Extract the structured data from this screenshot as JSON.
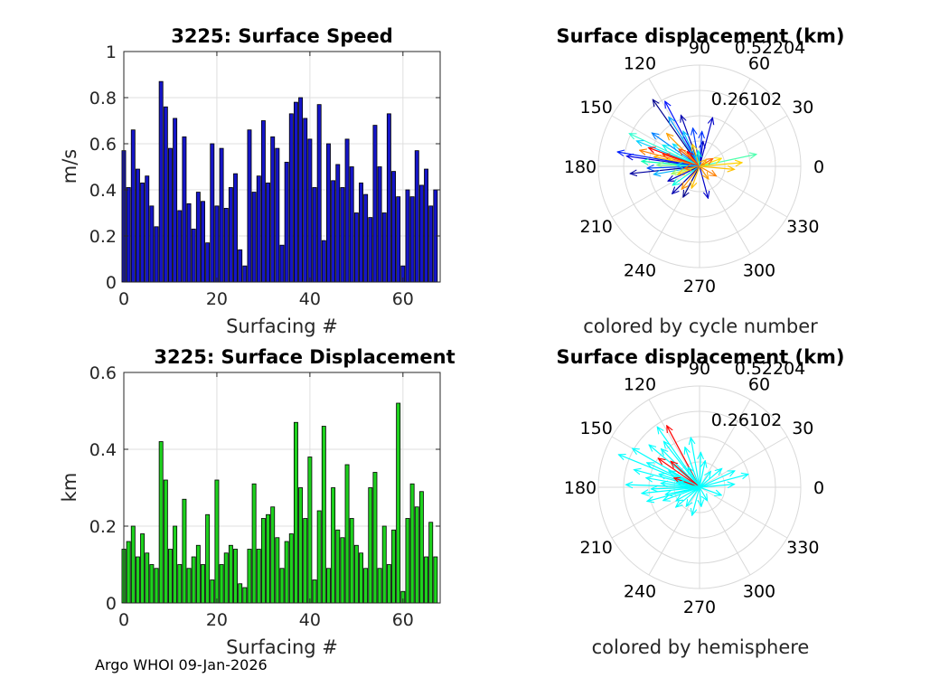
{
  "chart_data": [
    {
      "type": "bar",
      "title": "3225: Surface Speed",
      "xlabel": "Surfacing #",
      "ylabel": "m/s",
      "xlim": [
        0,
        68
      ],
      "ylim": [
        0,
        1
      ],
      "xticks": [
        0,
        20,
        40,
        60
      ],
      "yticks": [
        0,
        0.2,
        0.4,
        0.6,
        0.8,
        1
      ],
      "ytick_labels": [
        "0",
        "0.2",
        "0.4",
        "0.6",
        "0.8",
        "1"
      ],
      "grid": true,
      "bar_color": "#1515c8",
      "x": [
        0,
        1,
        2,
        3,
        4,
        5,
        6,
        7,
        8,
        9,
        10,
        11,
        12,
        13,
        14,
        15,
        16,
        17,
        18,
        19,
        20,
        21,
        22,
        23,
        24,
        25,
        26,
        27,
        28,
        29,
        30,
        31,
        32,
        33,
        34,
        35,
        36,
        37,
        38,
        39,
        40,
        41,
        42,
        43,
        44,
        45,
        46,
        47,
        48,
        49,
        50,
        51,
        52,
        53,
        54,
        55,
        56,
        57,
        58,
        59,
        60,
        61,
        62,
        63,
        64,
        65,
        66,
        67
      ],
      "values": [
        0.57,
        0.41,
        0.66,
        0.49,
        0.43,
        0.46,
        0.33,
        0.24,
        0.87,
        0.76,
        0.58,
        0.71,
        0.31,
        0.63,
        0.34,
        0.23,
        0.39,
        0.35,
        0.17,
        0.6,
        0.33,
        0.58,
        0.32,
        0.41,
        0.47,
        0.14,
        0.07,
        0.66,
        0.39,
        0.46,
        0.7,
        0.43,
        0.63,
        0.58,
        0.16,
        0.52,
        0.73,
        0.78,
        0.8,
        0.71,
        0.62,
        0.41,
        0.77,
        0.18,
        0.6,
        0.44,
        0.51,
        0.41,
        0.62,
        0.5,
        0.3,
        0.43,
        0.38,
        0.28,
        0.68,
        0.5,
        0.3,
        0.73,
        0.48,
        0.37,
        0.07,
        0.4,
        0.37,
        0.57,
        0.42,
        0.49,
        0.33,
        0.4
      ]
    },
    {
      "type": "polar",
      "title": "Surface displacement (km)",
      "subtitle": "colored by cycle number",
      "rmax": 0.52204,
      "rticks": [
        0.26102,
        0.52204
      ],
      "rtick_labels": [
        "0.26102",
        "0.52204"
      ],
      "angle_ticks": [
        0,
        30,
        60,
        90,
        120,
        150,
        180,
        210,
        240,
        270,
        300,
        330
      ],
      "vectors": [
        {
          "angle": 125,
          "r": 0.42,
          "color": "#00008f"
        },
        {
          "angle": 118,
          "r": 0.38,
          "color": "#0010ff"
        },
        {
          "angle": 110,
          "r": 0.28,
          "color": "#0000b0"
        },
        {
          "angle": 100,
          "r": 0.2,
          "color": "#0040ff"
        },
        {
          "angle": 82,
          "r": 0.13,
          "color": "#0000c0"
        },
        {
          "angle": 75,
          "r": 0.26,
          "color": "#0000c8"
        },
        {
          "angle": 86,
          "r": 0.18,
          "color": "#0030ff"
        },
        {
          "angle": 122,
          "r": 0.3,
          "color": "#00a0ff"
        },
        {
          "angle": 115,
          "r": 0.2,
          "color": "#00c0ff"
        },
        {
          "angle": 140,
          "r": 0.18,
          "color": "#00e0ff"
        },
        {
          "angle": 145,
          "r": 0.3,
          "color": "#0080ff"
        },
        {
          "angle": 150,
          "r": 0.22,
          "color": "#00f0f0"
        },
        {
          "angle": 155,
          "r": 0.4,
          "color": "#30ffd0"
        },
        {
          "angle": 158,
          "r": 0.35,
          "color": "#00d0ff"
        },
        {
          "angle": 160,
          "r": 0.28,
          "color": "#ff0000"
        },
        {
          "angle": 162,
          "r": 0.2,
          "color": "#ff3000"
        },
        {
          "angle": 165,
          "r": 0.32,
          "color": "#ff8000"
        },
        {
          "angle": 168,
          "r": 0.24,
          "color": "#ffb000"
        },
        {
          "angle": 170,
          "r": 0.18,
          "color": "#ffe000"
        },
        {
          "angle": 172,
          "r": 0.38,
          "color": "#0000e0"
        },
        {
          "angle": 175,
          "r": 0.3,
          "color": "#00ffb0"
        },
        {
          "angle": 178,
          "r": 0.22,
          "color": "#80ff80"
        },
        {
          "angle": 182,
          "r": 0.27,
          "color": "#0050ff"
        },
        {
          "angle": 186,
          "r": 0.36,
          "color": "#0000a0"
        },
        {
          "angle": 190,
          "r": 0.24,
          "color": "#00b0ff"
        },
        {
          "angle": 195,
          "r": 0.15,
          "color": "#a0ff60"
        },
        {
          "angle": 200,
          "r": 0.12,
          "color": "#ffd000"
        },
        {
          "angle": 205,
          "r": 0.18,
          "color": "#0000c0"
        },
        {
          "angle": 215,
          "r": 0.17,
          "color": "#00ffe0"
        },
        {
          "angle": 225,
          "r": 0.2,
          "color": "#0000b0"
        },
        {
          "angle": 232,
          "r": 0.15,
          "color": "#ff9000"
        },
        {
          "angle": 242,
          "r": 0.18,
          "color": "#00008f"
        },
        {
          "angle": 250,
          "r": 0.12,
          "color": "#ffc000"
        },
        {
          "angle": 285,
          "r": 0.17,
          "color": "#0000c8"
        },
        {
          "angle": 305,
          "r": 0.08,
          "color": "#ffa000"
        },
        {
          "angle": 330,
          "r": 0.1,
          "color": "#ff8000"
        },
        {
          "angle": 355,
          "r": 0.18,
          "color": "#ffc000"
        },
        {
          "angle": 5,
          "r": 0.22,
          "color": "#ffd000"
        },
        {
          "angle": 12,
          "r": 0.3,
          "color": "#50ffb0"
        },
        {
          "angle": 20,
          "r": 0.12,
          "color": "#ffe000"
        },
        {
          "angle": 30,
          "r": 0.08,
          "color": "#ff6000"
        },
        {
          "angle": 45,
          "r": 0.05,
          "color": "#ffb000"
        },
        {
          "angle": 130,
          "r": 0.1,
          "color": "#ff0000"
        },
        {
          "angle": 135,
          "r": 0.24,
          "color": "#ffa000"
        },
        {
          "angle": 140,
          "r": 0.14,
          "color": "#ff5000"
        },
        {
          "angle": 108,
          "r": 0.12,
          "color": "#ffd000"
        },
        {
          "angle": 95,
          "r": 0.08,
          "color": "#00ffd0"
        },
        {
          "angle": 170,
          "r": 0.43,
          "color": "#0020ff"
        },
        {
          "angle": 176,
          "r": 0.12,
          "color": "#00d0ff"
        },
        {
          "angle": 188,
          "r": 0.08,
          "color": "#ff7000"
        }
      ]
    },
    {
      "type": "bar",
      "title": "3225: Surface Displacement",
      "xlabel": "Surfacing #",
      "ylabel": "km",
      "xlim": [
        0,
        68
      ],
      "ylim": [
        0,
        0.6
      ],
      "xticks": [
        0,
        20,
        40,
        60
      ],
      "yticks": [
        0,
        0.2,
        0.4,
        0.6
      ],
      "ytick_labels": [
        "0",
        "0.2",
        "0.4",
        "0.6"
      ],
      "grid": true,
      "bar_color": "#1ed21e",
      "x": [
        0,
        1,
        2,
        3,
        4,
        5,
        6,
        7,
        8,
        9,
        10,
        11,
        12,
        13,
        14,
        15,
        16,
        17,
        18,
        19,
        20,
        21,
        22,
        23,
        24,
        25,
        26,
        27,
        28,
        29,
        30,
        31,
        32,
        33,
        34,
        35,
        36,
        37,
        38,
        39,
        40,
        41,
        42,
        43,
        44,
        45,
        46,
        47,
        48,
        49,
        50,
        51,
        52,
        53,
        54,
        55,
        56,
        57,
        58,
        59,
        60,
        61,
        62,
        63,
        64,
        65,
        66,
        67
      ],
      "values": [
        0.14,
        0.16,
        0.2,
        0.12,
        0.18,
        0.13,
        0.1,
        0.09,
        0.42,
        0.32,
        0.14,
        0.2,
        0.1,
        0.27,
        0.09,
        0.12,
        0.15,
        0.1,
        0.23,
        0.06,
        0.32,
        0.1,
        0.13,
        0.15,
        0.14,
        0.05,
        0.04,
        0.14,
        0.31,
        0.14,
        0.22,
        0.23,
        0.25,
        0.17,
        0.09,
        0.16,
        0.18,
        0.47,
        0.3,
        0.22,
        0.38,
        0.06,
        0.24,
        0.46,
        0.09,
        0.3,
        0.19,
        0.17,
        0.36,
        0.22,
        0.15,
        0.13,
        0.09,
        0.3,
        0.34,
        0.09,
        0.2,
        0.1,
        0.19,
        0.52,
        0.03,
        0.22,
        0.31,
        0.25,
        0.29,
        0.12,
        0.21,
        0.12
      ]
    },
    {
      "type": "polar",
      "title": "Surface displacement (km)",
      "subtitle": "colored by hemisphere",
      "rmax": 0.52204,
      "rticks": [
        0.26102,
        0.52204
      ],
      "rtick_labels": [
        "0.26102",
        "0.52204"
      ],
      "angle_ticks": [
        0,
        30,
        60,
        90,
        120,
        150,
        180,
        210,
        240,
        270,
        300,
        330
      ],
      "vectors": [
        {
          "angle": 125,
          "r": 0.38,
          "color": "#00ffff"
        },
        {
          "angle": 118,
          "r": 0.36,
          "color": "#ff0000"
        },
        {
          "angle": 110,
          "r": 0.22,
          "color": "#00ffff"
        },
        {
          "angle": 100,
          "r": 0.26,
          "color": "#00ffff"
        },
        {
          "angle": 88,
          "r": 0.18,
          "color": "#00ffff"
        },
        {
          "angle": 78,
          "r": 0.14,
          "color": "#00ffff"
        },
        {
          "angle": 128,
          "r": 0.3,
          "color": "#00ffff"
        },
        {
          "angle": 135,
          "r": 0.28,
          "color": "#00ffff"
        },
        {
          "angle": 140,
          "r": 0.34,
          "color": "#00ffff"
        },
        {
          "angle": 145,
          "r": 0.26,
          "color": "#ff0000"
        },
        {
          "angle": 150,
          "r": 0.4,
          "color": "#00ffff"
        },
        {
          "angle": 155,
          "r": 0.3,
          "color": "#00ffff"
        },
        {
          "angle": 158,
          "r": 0.45,
          "color": "#00ffff"
        },
        {
          "angle": 162,
          "r": 0.22,
          "color": "#00ffff"
        },
        {
          "angle": 165,
          "r": 0.35,
          "color": "#00ffff"
        },
        {
          "angle": 170,
          "r": 0.28,
          "color": "#00ffff"
        },
        {
          "angle": 174,
          "r": 0.2,
          "color": "#00ffff"
        },
        {
          "angle": 178,
          "r": 0.38,
          "color": "#00ffff"
        },
        {
          "angle": 182,
          "r": 0.25,
          "color": "#00ffff"
        },
        {
          "angle": 186,
          "r": 0.3,
          "color": "#00ffff"
        },
        {
          "angle": 192,
          "r": 0.18,
          "color": "#00ffff"
        },
        {
          "angle": 200,
          "r": 0.2,
          "color": "#00ffff"
        },
        {
          "angle": 210,
          "r": 0.14,
          "color": "#00ffff"
        },
        {
          "angle": 220,
          "r": 0.16,
          "color": "#00ffff"
        },
        {
          "angle": 235,
          "r": 0.12,
          "color": "#00ffff"
        },
        {
          "angle": 255,
          "r": 0.15,
          "color": "#00ffff"
        },
        {
          "angle": 275,
          "r": 0.1,
          "color": "#00ffff"
        },
        {
          "angle": 300,
          "r": 0.08,
          "color": "#00ffff"
        },
        {
          "angle": 340,
          "r": 0.12,
          "color": "#00ffff"
        },
        {
          "angle": 5,
          "r": 0.18,
          "color": "#00ffff"
        },
        {
          "angle": 15,
          "r": 0.26,
          "color": "#00ffff"
        },
        {
          "angle": 25,
          "r": 0.2,
          "color": "#00ffff"
        },
        {
          "angle": 40,
          "r": 0.15,
          "color": "#00ffff"
        },
        {
          "angle": 55,
          "r": 0.1,
          "color": "#00ffff"
        },
        {
          "angle": 138,
          "r": 0.2,
          "color": "#ff0000"
        },
        {
          "angle": 160,
          "r": 0.14,
          "color": "#ff0000"
        },
        {
          "angle": 152,
          "r": 0.18,
          "color": "#00ffff"
        },
        {
          "angle": 120,
          "r": 0.12,
          "color": "#00ffff"
        },
        {
          "angle": 195,
          "r": 0.28,
          "color": "#00ffff"
        },
        {
          "angle": 168,
          "r": 0.12,
          "color": "#00ffff"
        }
      ]
    }
  ],
  "footer": {
    "credit": "Argo WHOI 09-Jan-2026"
  }
}
